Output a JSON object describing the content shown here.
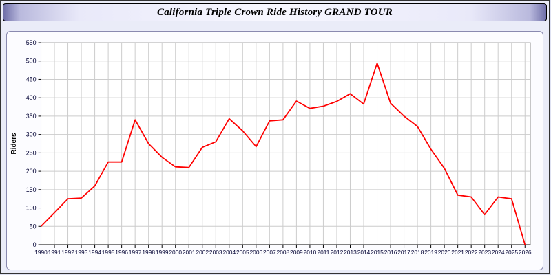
{
  "header": {
    "title": "California Triple Crown Ride History GRAND TOUR"
  },
  "chart_data": {
    "type": "line",
    "title": "California Triple Crown Ride History GRAND TOUR",
    "xlabel": "",
    "ylabel": "Riders",
    "ylim": [
      0,
      550
    ],
    "ytick_step": 50,
    "grid": true,
    "legend": "none",
    "line_color": "#ff0000",
    "grid_color": "#cccccc",
    "tick_color": "#000033",
    "axis_color": "#000000",
    "categories": [
      1990,
      1991,
      1992,
      1993,
      1994,
      1995,
      1996,
      1997,
      1998,
      1999,
      2000,
      2001,
      2002,
      2003,
      2004,
      2005,
      2006,
      2007,
      2008,
      2009,
      2010,
      2011,
      2012,
      2013,
      2014,
      2015,
      2016,
      2017,
      2018,
      2019,
      2020,
      2021,
      2022,
      2023,
      2024,
      2025,
      2026
    ],
    "values": [
      50,
      87,
      125,
      127,
      160,
      225,
      225,
      340,
      275,
      238,
      212,
      210,
      265,
      280,
      343,
      310,
      267,
      337,
      340,
      391,
      371,
      377,
      390,
      411,
      383,
      494,
      385,
      350,
      322,
      260,
      208,
      135,
      130,
      82,
      130,
      125,
      0
    ]
  }
}
